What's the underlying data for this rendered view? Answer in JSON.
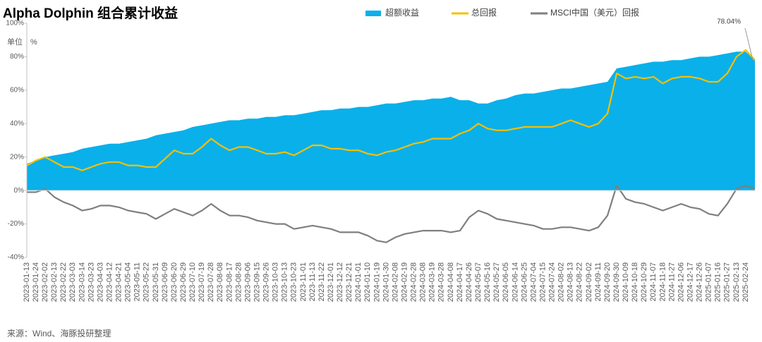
{
  "chart_data": {
    "type": "area-line",
    "title": "Alpha Dolphin 组合累计收益",
    "y_unit": "单位　%",
    "source": "来源：Wind、海豚投研整理",
    "ylim": [
      -40,
      100
    ],
    "yticks": [
      {
        "value": -40,
        "label": "-40%"
      },
      {
        "value": -20,
        "label": "-20%"
      },
      {
        "value": 0,
        "label": "0%"
      },
      {
        "value": 20,
        "label": "20%"
      },
      {
        "value": 40,
        "label": "40%"
      },
      {
        "value": 60,
        "label": "60%"
      },
      {
        "value": 80,
        "label": "80%"
      },
      {
        "value": 100,
        "label": "100%"
      }
    ],
    "legend": "top",
    "categories": [
      "2023-01-13",
      "2023-01-24",
      "2023-02-02",
      "2023-02-13",
      "2023-02-22",
      "2023-03-03",
      "2023-03-14",
      "2023-03-23",
      "2023-04-03",
      "2023-04-12",
      "2023-04-21",
      "2023-05-04",
      "2023-05-11",
      "2023-05-22",
      "2023-05-31",
      "2023-06-09",
      "2023-06-20",
      "2023-06-29",
      "2023-07-10",
      "2023-07-19",
      "2023-07-28",
      "2023-08-08",
      "2023-08-17",
      "2023-08-28",
      "2023-09-06",
      "2023-09-15",
      "2023-09-26",
      "2023-10-03",
      "2023-10-13",
      "2023-10-23",
      "2023-11-01",
      "2023-11-13",
      "2023-11-22",
      "2023-12-01",
      "2023-12-12",
      "2023-12-21",
      "2024-01-01",
      "2024-01-10",
      "2024-01-19",
      "2024-01-30",
      "2024-02-08",
      "2024-02-19",
      "2024-02-28",
      "2024-03-08",
      "2024-03-19",
      "2024-03-28",
      "2024-04-08",
      "2024-04-17",
      "2024-04-26",
      "2024-05-07",
      "2024-05-16",
      "2024-05-27",
      "2024-06-05",
      "2024-06-14",
      "2024-06-25",
      "2024-07-04",
      "2024-07-15",
      "2024-07-24",
      "2024-08-02",
      "2024-08-13",
      "2024-08-22",
      "2024-09-02",
      "2024-09-11",
      "2024-09-20",
      "2024-09-30",
      "2024-10-09",
      "2024-10-18",
      "2024-10-29",
      "2024-11-07",
      "2024-11-18",
      "2024-11-27",
      "2024-12-06",
      "2024-12-17",
      "2024-12-26",
      "2025-01-07",
      "2025-01-16",
      "2025-01-27",
      "2025-02-13",
      "2025-02-24",
      null
    ],
    "series": [
      {
        "name": "超额收益",
        "kind": "area",
        "color": "#0ab0ea",
        "values": [
          16,
          18,
          20,
          21,
          22,
          23,
          25,
          26,
          27,
          28,
          28,
          29,
          30,
          31,
          33,
          34,
          35,
          36,
          38,
          39,
          40,
          41,
          42,
          42,
          43,
          43,
          44,
          44,
          45,
          45,
          46,
          47,
          48,
          48,
          49,
          49,
          50,
          50,
          51,
          52,
          52,
          53,
          54,
          54,
          55,
          55,
          56,
          54,
          54,
          52,
          52,
          54,
          55,
          57,
          58,
          58,
          59,
          60,
          61,
          61,
          62,
          63,
          64,
          65,
          73,
          74,
          75,
          76,
          77,
          77,
          78,
          78,
          79,
          80,
          80,
          81,
          82,
          83,
          83,
          78
        ]
      },
      {
        "name": "总回报",
        "kind": "line",
        "color": "#f5c000",
        "values": [
          15,
          18,
          20,
          17,
          14,
          14,
          12,
          14,
          16,
          17,
          17,
          15,
          15,
          14,
          14,
          19,
          24,
          22,
          22,
          26,
          31,
          27,
          24,
          26,
          26,
          24,
          22,
          22,
          23,
          21,
          24,
          27,
          27,
          25,
          25,
          24,
          24,
          22,
          21,
          23,
          24,
          26,
          28,
          29,
          31,
          31,
          31,
          34,
          36,
          40,
          37,
          36,
          36,
          37,
          38,
          38,
          38,
          38,
          40,
          42,
          40,
          38,
          40,
          46,
          70,
          67,
          68,
          67,
          68,
          64,
          67,
          68,
          68,
          67,
          65,
          65,
          70,
          80,
          84,
          78.04
        ]
      },
      {
        "name": "MSCI中国（美元）回报",
        "kind": "line",
        "color": "#7f7f7f",
        "values": [
          -1,
          -1,
          1,
          -4,
          -7,
          -9,
          -12,
          -11,
          -9,
          -9,
          -10,
          -12,
          -13,
          -14,
          -17,
          -14,
          -11,
          -13,
          -15,
          -12,
          -8,
          -12,
          -15,
          -15,
          -16,
          -18,
          -19,
          -20,
          -20,
          -23,
          -22,
          -21,
          -22,
          -23,
          -25,
          -25,
          -25,
          -27,
          -30,
          -31,
          -28,
          -26,
          -25,
          -24,
          -24,
          -24,
          -25,
          -24,
          -16,
          -12,
          -14,
          -17,
          -18,
          -19,
          -20,
          -21,
          -23,
          -23,
          -22,
          -22,
          -23,
          -24,
          -22,
          -15,
          3,
          -5,
          -7,
          -8,
          -10,
          -12,
          -10,
          -8,
          -10,
          -11,
          -14,
          -15,
          -8,
          1,
          3,
          1
        ]
      }
    ],
    "annotation": {
      "label": "78.04%",
      "value": 78.04
    }
  }
}
